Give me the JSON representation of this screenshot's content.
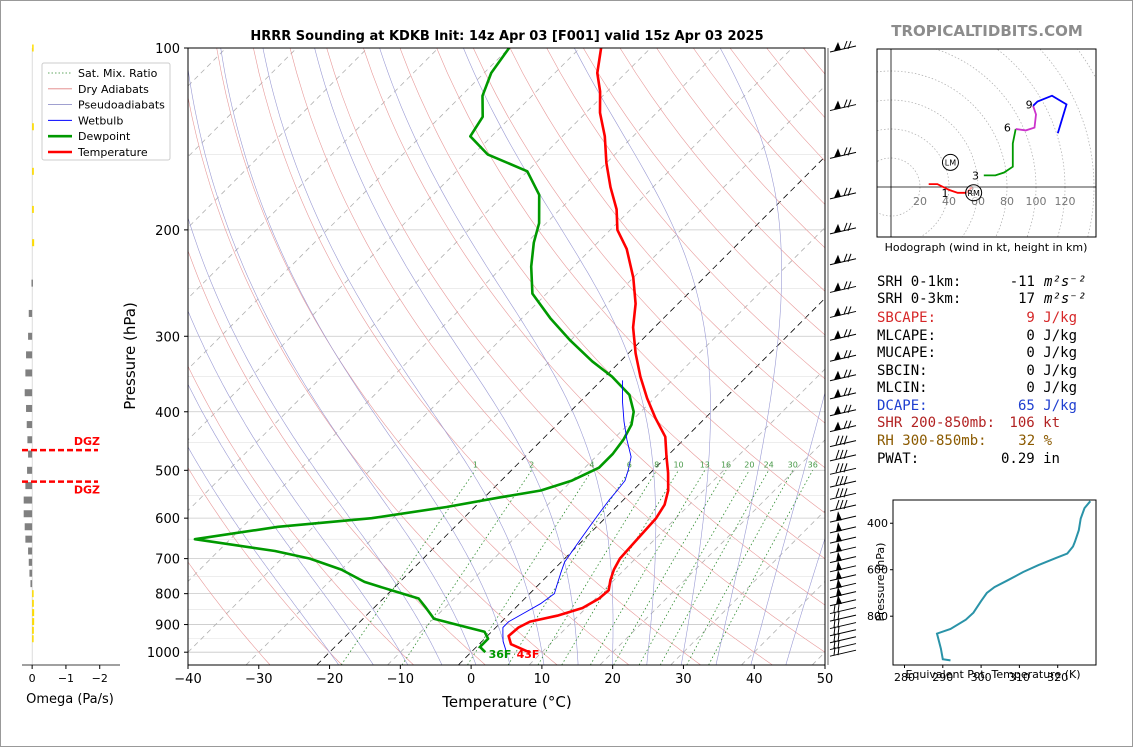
{
  "title": "HRRR Sounding at KDKB Init: 14z Apr 03 [F001] valid 15z Apr 03 2025",
  "brand": "TROPICALTIDBITS.COM",
  "colors": {
    "temperature": "#ff0000",
    "dewpoint": "#009900",
    "wetbulb": "#0000ff",
    "dgz": "#ff0000",
    "theta_e": "#2a93a8",
    "hodo_0_3": "#ff0000",
    "hodo_3_6": "#009900",
    "hodo_6_9": "#cc33cc",
    "hodo_9_12": "#0000ff",
    "omega_down": "#808080",
    "omega_up": "#ffdd00"
  },
  "chart_data": [
    {
      "type": "line",
      "name": "skewt",
      "title": "HRRR Sounding at KDKB Init: 14z Apr 03 [F001] valid 15z Apr 03 2025",
      "xlabel": "Temperature (°C)",
      "ylabel": "Pressure (hPa)",
      "xlim": [
        -40,
        50
      ],
      "ylim": [
        1050,
        100
      ],
      "y_scale": "log",
      "x_ticks": [
        "−40",
        "−30",
        "−20",
        "−10",
        "0",
        "10",
        "20",
        "30",
        "40",
        "50"
      ],
      "y_ticks": [
        "100",
        "200",
        "300",
        "400",
        "500",
        "600",
        "700",
        "800",
        "900",
        "1000"
      ],
      "legend": [
        {
          "label": "Sat. Mix. Ratio",
          "color": "#2e8b2e",
          "style": "dotted"
        },
        {
          "label": "Dry Adiabats",
          "color": "#e08080",
          "style": "solid-thin"
        },
        {
          "label": "Pseudoadiabats",
          "color": "#8080c0",
          "style": "solid-thin"
        },
        {
          "label": "Wetbulb",
          "color": "#0000ff",
          "style": "solid"
        },
        {
          "label": "Dewpoint",
          "color": "#009900",
          "style": "solid-thick"
        },
        {
          "label": "Temperature",
          "color": "#ff0000",
          "style": "solid-thick"
        }
      ],
      "mixing_ratio_labels": [
        "1",
        "2",
        "4",
        "6",
        "8",
        "10",
        "13",
        "16",
        "20",
        "24",
        "30",
        "36"
      ],
      "surface_labels": {
        "dewpoint": "36F",
        "temperature": "43F"
      },
      "series": [
        {
          "name": "Temperature",
          "points": [
            [
              8.2,
              1000
            ],
            [
              4.5,
              970
            ],
            [
              3,
              940
            ],
            [
              3.2,
              910
            ],
            [
              4,
              890
            ],
            [
              7,
              870
            ],
            [
              9.5,
              845
            ],
            [
              10.5,
              815
            ],
            [
              10.7,
              790
            ],
            [
              9.5,
              760
            ],
            [
              8.5,
              730
            ],
            [
              7.8,
              700
            ],
            [
              7.5,
              650
            ],
            [
              7.2,
              600
            ],
            [
              6.5,
              570
            ],
            [
              5,
              540
            ],
            [
              2.5,
              505
            ],
            [
              0,
              475
            ],
            [
              -3,
              440
            ],
            [
              -7,
              410
            ],
            [
              -11,
              380
            ],
            [
              -15,
              350
            ],
            [
              -19,
              320
            ],
            [
              -23,
              290
            ],
            [
              -26,
              265
            ],
            [
              -30,
              240
            ],
            [
              -35,
              215
            ],
            [
              -39,
              200
            ],
            [
              -42,
              185
            ],
            [
              -46,
              170
            ],
            [
              -50,
              155
            ],
            [
              -54,
              140
            ],
            [
              -58,
              128
            ],
            [
              -61,
              118
            ],
            [
              -64,
              110
            ],
            [
              -67,
              100
            ]
          ]
        },
        {
          "name": "Dewpoint",
          "points": [
            [
              2,
              1000
            ],
            [
              0.5,
              980
            ],
            [
              0.5,
              950
            ],
            [
              -1,
              925
            ],
            [
              -5,
              905
            ],
            [
              -10,
              880
            ],
            [
              -13,
              840
            ],
            [
              -15,
              815
            ],
            [
              -20,
              790
            ],
            [
              -25,
              765
            ],
            [
              -30,
              730
            ],
            [
              -36,
              700
            ],
            [
              -42,
              680
            ],
            [
              -55,
              650
            ],
            [
              -45,
              620
            ],
            [
              -33,
              600
            ],
            [
              -24,
              575
            ],
            [
              -18,
              555
            ],
            [
              -13,
              540
            ],
            [
              -10,
              520
            ],
            [
              -8,
              495
            ],
            [
              -8,
              470
            ],
            [
              -8.5,
              445
            ],
            [
              -9.5,
              420
            ],
            [
              -11,
              400
            ],
            [
              -14,
              375
            ],
            [
              -19,
              350
            ],
            [
              -24,
              330
            ],
            [
              -30,
              305
            ],
            [
              -36,
              280
            ],
            [
              -42,
              255
            ],
            [
              -46,
              230
            ],
            [
              -49,
              210
            ],
            [
              -51,
              195
            ],
            [
              -55,
              175
            ],
            [
              -60,
              160
            ],
            [
              -68,
              150
            ],
            [
              -73,
              140
            ],
            [
              -74,
              130
            ],
            [
              -77,
              120
            ],
            [
              -79,
              110
            ],
            [
              -80,
              100
            ]
          ]
        },
        {
          "name": "Wetbulb",
          "points": [
            [
              5,
              1000
            ],
            [
              3,
              960
            ],
            [
              2,
              935
            ],
            [
              1,
              910
            ],
            [
              1,
              890
            ],
            [
              2,
              860
            ],
            [
              3,
              830
            ],
            [
              3.5,
              800
            ],
            [
              2.5,
              770
            ],
            [
              1.5,
              740
            ],
            [
              0.5,
              710
            ],
            [
              0,
              680
            ],
            [
              -0.5,
              650
            ],
            [
              -1,
              620
            ],
            [
              -1.5,
              590
            ],
            [
              -2,
              560
            ],
            [
              -2.2,
              540
            ],
            [
              -2.5,
              520
            ],
            [
              -3.5,
              500
            ],
            [
              -5,
              475
            ],
            [
              -8,
              445
            ],
            [
              -11,
              415
            ],
            [
              -14,
              385
            ],
            [
              -17,
              355
            ]
          ]
        }
      ],
      "wind_barbs_present": true
    },
    {
      "type": "line",
      "name": "hodograph",
      "xlabel": "Hodograph (wind in kt, height in km)",
      "x_ticks": [
        "20",
        "40",
        "60",
        "80",
        "100",
        "120"
      ],
      "height_labels": [
        "1",
        "2",
        "3",
        "6",
        "9"
      ],
      "motion_markers": [
        "LM",
        "RM"
      ],
      "segments": [
        {
          "range": "0-3 km",
          "color": "#ff0000",
          "points": [
            [
              26,
              2
            ],
            [
              32,
              2
            ],
            [
              40,
              -2
            ],
            [
              46,
              -4
            ],
            [
              52,
              -4
            ],
            [
              56,
              0
            ]
          ]
        },
        {
          "range": "3-6 km",
          "color": "#009900",
          "points": [
            [
              64,
              8
            ],
            [
              72,
              8
            ],
            [
              78,
              10
            ],
            [
              84,
              14
            ],
            [
              84,
              30
            ],
            [
              86,
              40
            ]
          ]
        },
        {
          "range": "6-9 km",
          "color": "#cc33cc",
          "points": [
            [
              86,
              40
            ],
            [
              93,
              39
            ],
            [
              99,
              41
            ],
            [
              100,
              50
            ],
            [
              98,
              56
            ]
          ]
        },
        {
          "range": "9-12 km",
          "color": "#0000ff",
          "points": [
            [
              98,
              56
            ],
            [
              101,
              59
            ],
            [
              111,
              63
            ],
            [
              121,
              57
            ],
            [
              115,
              37
            ]
          ]
        }
      ]
    },
    {
      "type": "line",
      "name": "theta_e",
      "xlabel": "Equivalent Pot. Temperature (K)",
      "ylabel": "Pressure (hPa)",
      "xlim": [
        277,
        330
      ],
      "ylim": [
        1010,
        300
      ],
      "x_ticks": [
        "280",
        "290",
        "300",
        "310",
        "320"
      ],
      "y_ticks": [
        "400",
        "600",
        "800"
      ],
      "points": [
        [
          292,
          990
        ],
        [
          290,
          985
        ],
        [
          289.5,
          940
        ],
        [
          288.5,
          875
        ],
        [
          292,
          855
        ],
        [
          296,
          815
        ],
        [
          298,
          785
        ],
        [
          300,
          735
        ],
        [
          301.5,
          700
        ],
        [
          303.5,
          675
        ],
        [
          307,
          645
        ],
        [
          311,
          610
        ],
        [
          315,
          580
        ],
        [
          319.5,
          550
        ],
        [
          322.5,
          530
        ],
        [
          324,
          500
        ],
        [
          324.5,
          480
        ],
        [
          325.5,
          430
        ],
        [
          326,
          380
        ],
        [
          327,
          335
        ],
        [
          328.5,
          305
        ]
      ]
    },
    {
      "type": "bar",
      "name": "omega",
      "xlabel": "Omega (Pa/s)",
      "x_ticks": [
        "0",
        "−1",
        "−2"
      ],
      "xlim": [
        0.3,
        -2.6
      ],
      "bars": [
        [
          100,
          -0.02
        ],
        [
          135,
          -0.05
        ],
        [
          160,
          -0.05
        ],
        [
          185,
          -0.05
        ],
        [
          210,
          -0.06
        ],
        [
          245,
          0.02
        ],
        [
          275,
          0.1
        ],
        [
          300,
          0.12
        ],
        [
          322,
          0.18
        ],
        [
          345,
          0.2
        ],
        [
          372,
          0.22
        ],
        [
          395,
          0.18
        ],
        [
          420,
          0.16
        ],
        [
          445,
          0.14
        ],
        [
          470,
          0.12
        ],
        [
          500,
          0.15
        ],
        [
          530,
          0.2
        ],
        [
          560,
          0.25
        ],
        [
          590,
          0.25
        ],
        [
          620,
          0.22
        ],
        [
          650,
          0.2
        ],
        [
          680,
          0.12
        ],
        [
          710,
          0.1
        ],
        [
          740,
          0.08
        ],
        [
          770,
          0.05
        ],
        [
          800,
          -0.02
        ],
        [
          830,
          -0.05
        ],
        [
          860,
          -0.06
        ],
        [
          890,
          -0.06
        ],
        [
          920,
          -0.05
        ],
        [
          950,
          -0.03
        ]
      ],
      "dgz_label": "DGZ",
      "dgz_pressures": [
        463,
        522
      ]
    }
  ],
  "params": {
    "srh01_label": "SRH 0-1km:",
    "srh01_value": "-11",
    "srh03_label": "SRH 0-3km:",
    "srh03_value": "17",
    "srh_unit": "m²s⁻²",
    "sbcape_label": "SBCAPE:",
    "sbcape_value": "9 J/kg",
    "mlcape_label": "MLCAPE:",
    "mlcape_value": "0 J/kg",
    "mucape_label": "MUCAPE:",
    "mucape_value": "0 J/kg",
    "sbcin_label": "SBCIN:",
    "sbcin_value": "0 J/kg",
    "mlcin_label": "MLCIN:",
    "mlcin_value": "0 J/kg",
    "dcape_label": "DCAPE:",
    "dcape_value": "65 J/kg",
    "shr_label": "SHR 200-850mb:",
    "shr_value": "106 kt",
    "rh_label": "RH 300-850mb:",
    "rh_value": "32 %",
    "pwat_label": "PWAT:",
    "pwat_value": "0.29 in"
  }
}
